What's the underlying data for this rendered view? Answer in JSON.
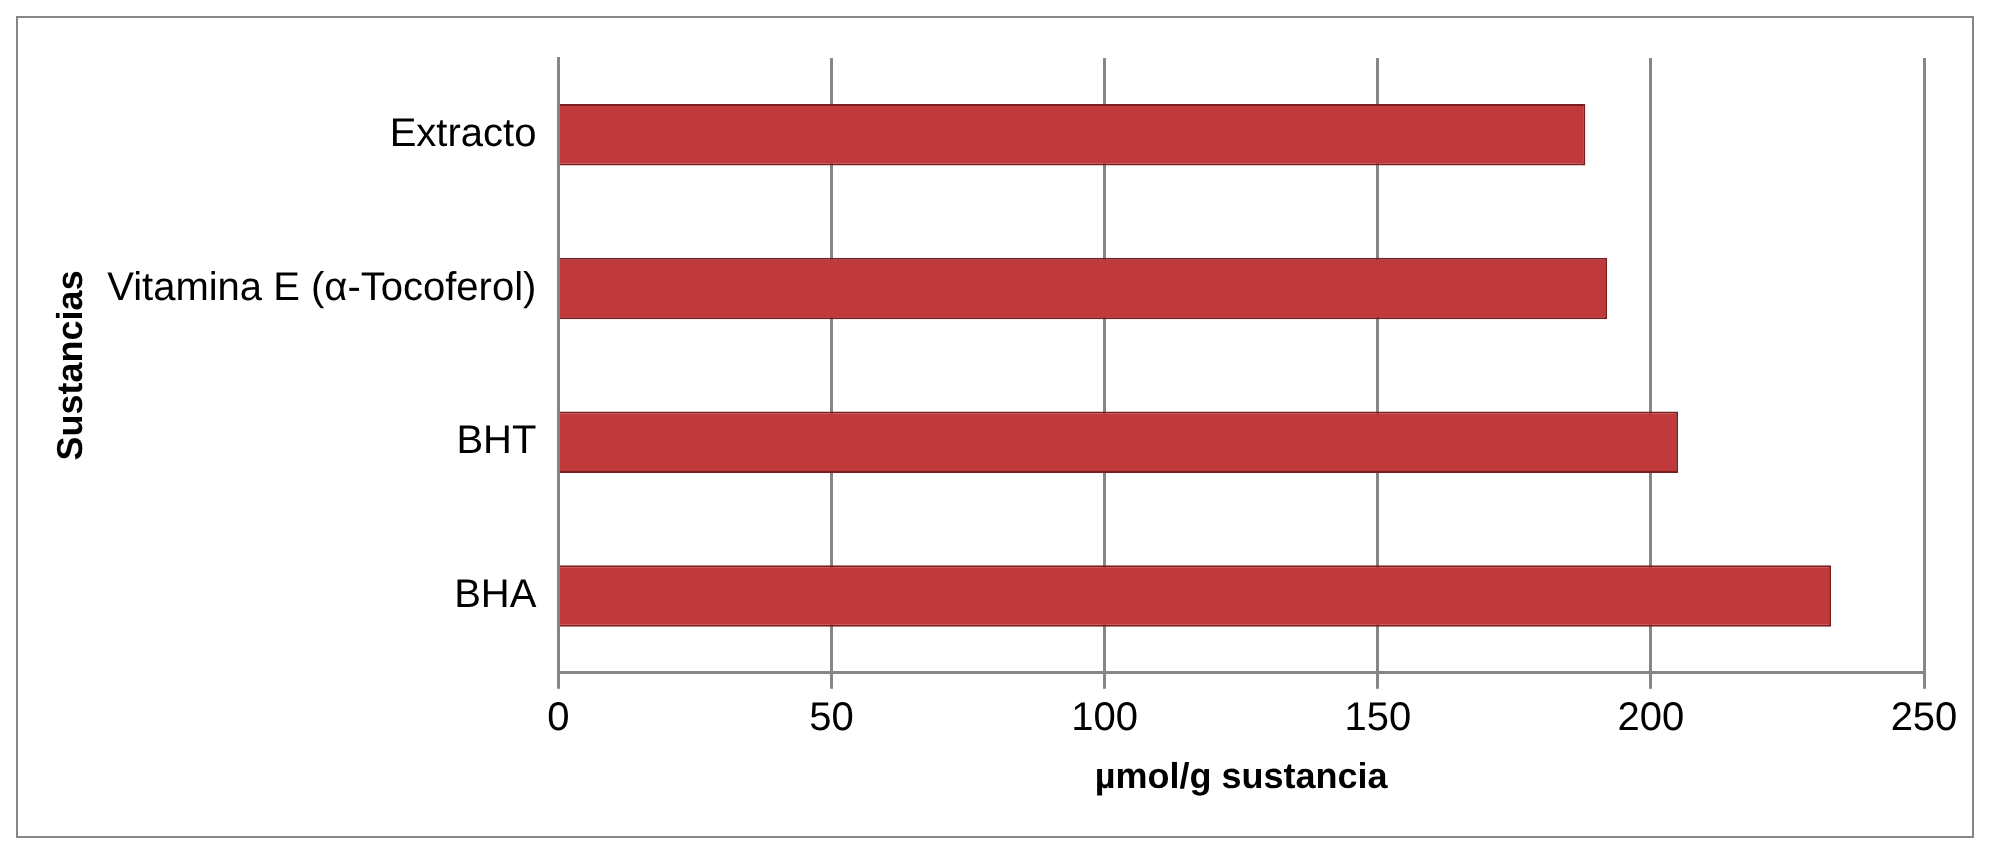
{
  "chart_data": {
    "type": "bar",
    "orientation": "horizontal",
    "ylabel": "Sustancias",
    "xlabel": "µmol/g sustancia",
    "categories": [
      "Extracto",
      "Vitamina E (α-Tocoferol)",
      "BHT",
      "BHA"
    ],
    "values": [
      188,
      192,
      205,
      233
    ],
    "color": "#c0393b",
    "xlim": [
      0,
      250
    ],
    "xticks": [
      0,
      50,
      100,
      150,
      200,
      250
    ],
    "grid": "x",
    "legend": false
  }
}
